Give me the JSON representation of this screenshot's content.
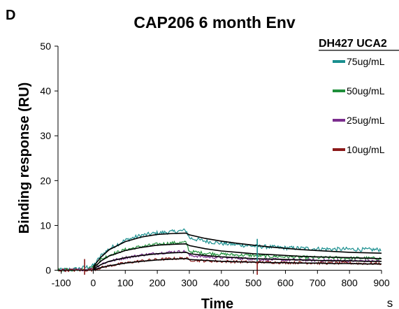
{
  "panel_label": "D",
  "chart_data": {
    "type": "line",
    "title": "CAP206 6 month Env",
    "xlabel": "Time",
    "x_unit": "s",
    "ylabel": "Binding response (RU)",
    "xlim": [
      -110,
      900
    ],
    "ylim": [
      -1,
      50
    ],
    "x_ticks": [
      -100,
      0,
      100,
      200,
      300,
      400,
      500,
      600,
      700,
      800,
      900
    ],
    "y_ticks": [
      0,
      10,
      20,
      30,
      40,
      50
    ],
    "grid": false,
    "legend_title": "DH427 UCA2",
    "legend_position": "top-right",
    "series": [
      {
        "name": "75ug/mL",
        "color": "#1a8f8f",
        "noise": 0.45,
        "x": [
          -110,
          -50,
          0,
          25,
          50,
          100,
          150,
          200,
          250,
          290,
          300,
          350,
          400,
          450,
          500,
          550,
          600,
          650,
          700,
          750,
          800,
          850,
          900
        ],
        "y": [
          0,
          0.3,
          1.0,
          3.3,
          4.8,
          6.7,
          7.8,
          8.3,
          8.6,
          8.9,
          7.2,
          6.5,
          6.0,
          5.7,
          5.4,
          5.2,
          5.0,
          4.9,
          4.8,
          4.7,
          4.7,
          4.6,
          4.6
        ]
      },
      {
        "name": "50ug/mL",
        "color": "#1f8f3a",
        "noise": 0.35,
        "x": [
          -110,
          -50,
          0,
          25,
          50,
          100,
          150,
          200,
          250,
          290,
          300,
          350,
          400,
          450,
          500,
          550,
          600,
          650,
          700,
          750,
          800,
          850,
          900
        ],
        "y": [
          0,
          0.2,
          0.6,
          2.4,
          3.4,
          4.6,
          5.3,
          5.8,
          6.1,
          6.2,
          4.2,
          3.8,
          3.6,
          3.4,
          3.3,
          3.1,
          3.0,
          2.9,
          2.8,
          2.8,
          2.7,
          2.7,
          2.6
        ]
      },
      {
        "name": "25ug/mL",
        "color": "#7b2d8e",
        "noise": 0.3,
        "x": [
          -110,
          -50,
          0,
          25,
          50,
          100,
          150,
          200,
          250,
          290,
          300,
          350,
          400,
          450,
          500,
          550,
          600,
          650,
          700,
          750,
          800,
          850,
          900
        ],
        "y": [
          0,
          0.1,
          0.3,
          1.4,
          2.0,
          2.8,
          3.4,
          3.8,
          4.1,
          4.2,
          3.3,
          3.0,
          2.8,
          2.7,
          2.5,
          2.4,
          2.3,
          2.3,
          2.2,
          2.2,
          2.1,
          2.1,
          2.0
        ]
      },
      {
        "name": "10ug/mL",
        "color": "#8b1a1a",
        "noise": 0.3,
        "x": [
          -110,
          -50,
          0,
          25,
          50,
          100,
          150,
          200,
          250,
          290,
          300,
          350,
          400,
          450,
          500,
          550,
          600,
          650,
          700,
          750,
          800,
          850,
          900
        ],
        "y": [
          0,
          0,
          0.1,
          0.6,
          1.0,
          1.6,
          2.1,
          2.4,
          2.6,
          2.7,
          2.3,
          2.1,
          2.0,
          1.9,
          1.8,
          1.8,
          1.7,
          1.7,
          1.6,
          1.6,
          1.6,
          1.5,
          1.5
        ]
      }
    ],
    "fits": [
      {
        "x": [
          0,
          25,
          50,
          100,
          150,
          200,
          250,
          290,
          300,
          350,
          400,
          450,
          500,
          550,
          600,
          650,
          700,
          750,
          800,
          850,
          900
        ],
        "y": [
          0.8,
          3.0,
          4.6,
          6.4,
          7.4,
          8.0,
          8.2,
          8.3,
          7.9,
          7.1,
          6.5,
          6.0,
          5.6,
          5.2,
          4.9,
          4.6,
          4.4,
          4.2,
          4.0,
          3.9,
          3.8
        ]
      },
      {
        "x": [
          0,
          25,
          50,
          100,
          150,
          200,
          250,
          290,
          300,
          350,
          400,
          450,
          500,
          550,
          600,
          650,
          700,
          750,
          800,
          850,
          900
        ],
        "y": [
          0.5,
          2.1,
          3.2,
          4.4,
          5.1,
          5.6,
          5.8,
          5.9,
          5.5,
          4.8,
          4.3,
          4.0,
          3.7,
          3.5,
          3.3,
          3.1,
          3.0,
          2.9,
          2.8,
          2.7,
          2.6
        ]
      },
      {
        "x": [
          0,
          25,
          50,
          100,
          150,
          200,
          250,
          290,
          300,
          350,
          400,
          450,
          500,
          550,
          600,
          650,
          700,
          750,
          800,
          850,
          900
        ],
        "y": [
          0.3,
          1.3,
          2.0,
          2.8,
          3.3,
          3.7,
          3.9,
          4.0,
          3.7,
          3.3,
          3.0,
          2.8,
          2.6,
          2.5,
          2.4,
          2.3,
          2.2,
          2.1,
          2.1,
          2.0,
          2.0
        ]
      },
      {
        "x": [
          0,
          25,
          50,
          100,
          150,
          200,
          250,
          290,
          300,
          350,
          400,
          450,
          500,
          550,
          600,
          650,
          700,
          750,
          800,
          850,
          900
        ],
        "y": [
          0.1,
          0.6,
          1.0,
          1.6,
          2.0,
          2.3,
          2.5,
          2.6,
          2.4,
          2.2,
          2.0,
          1.9,
          1.8,
          1.7,
          1.7,
          1.6,
          1.6,
          1.5,
          1.5,
          1.4,
          1.4
        ]
      }
    ],
    "spikes": [
      {
        "x": -27,
        "y": [
          -1,
          2.5
        ],
        "color": "#8b1a1a"
      },
      {
        "x": 512,
        "y": [
          -1,
          2.8
        ],
        "color": "#8b1a1a"
      },
      {
        "x": 512,
        "y": [
          2.0,
          7.0
        ],
        "color": "#1a8f8f"
      }
    ]
  }
}
